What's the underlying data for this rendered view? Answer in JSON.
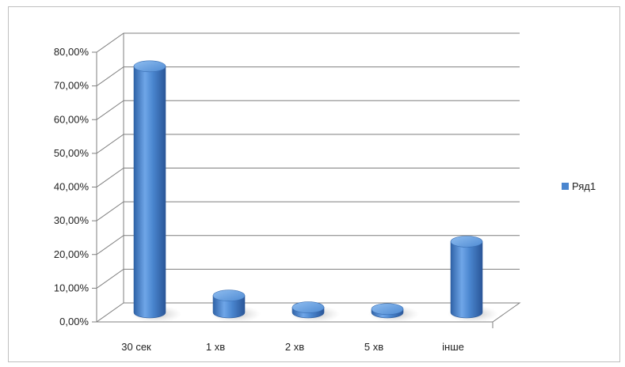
{
  "chart_data": {
    "type": "bar",
    "style": "3d-cylinder",
    "categories": [
      "30 сек",
      "1 хв",
      "2 хв",
      "5 хв",
      "інше"
    ],
    "series": [
      {
        "name": "Ряд1",
        "values": [
          0.73,
          0.05,
          0.015,
          0.01,
          0.21
        ],
        "color": "#4a86cf"
      }
    ],
    "y_ticks": [
      "0,00%",
      "10,00%",
      "20,00%",
      "30,00%",
      "40,00%",
      "50,00%",
      "60,00%",
      "70,00%",
      "80,00%"
    ],
    "ylim": [
      0,
      0.8
    ],
    "grid": true,
    "legend_position": "right"
  }
}
